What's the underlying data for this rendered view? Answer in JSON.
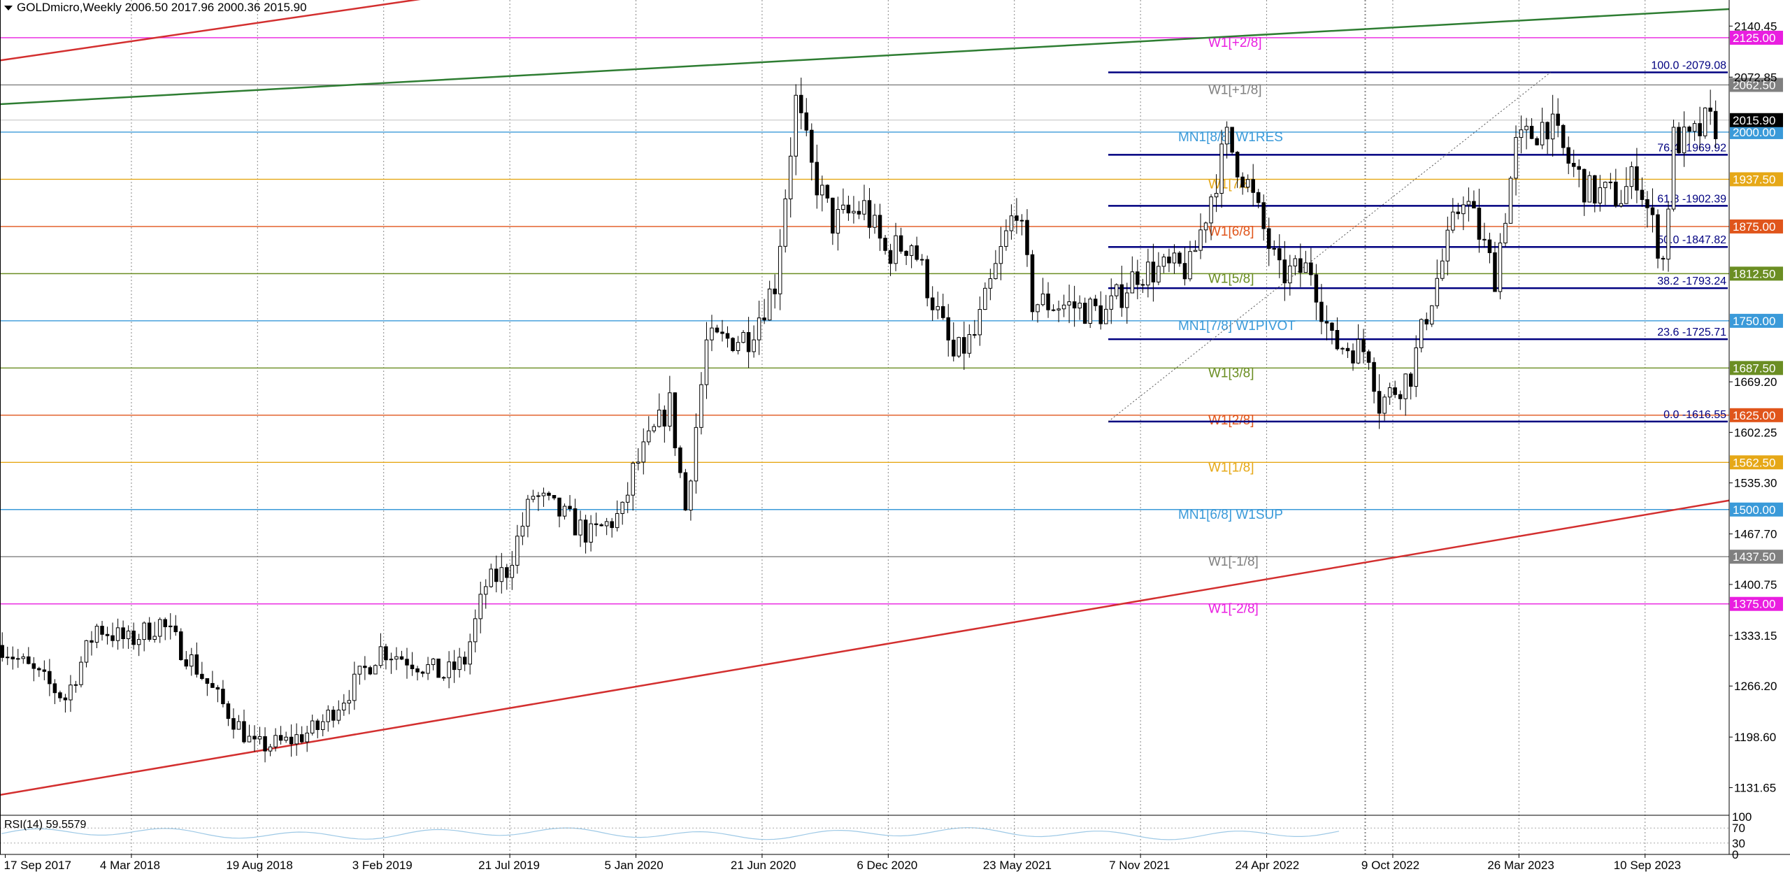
{
  "header": {
    "symbol_line": "GOLDmicro,Weekly  2006.50 2017.96 2000.36 2015.90"
  },
  "colors": {
    "background": "#ffffff",
    "candle": "#000000",
    "grid": "#888888",
    "fib": "#000080",
    "trend_red": "#d32f2f",
    "trend_green": "#2e7d32"
  },
  "chart_data": {
    "type": "candlestick",
    "title": "GOLDmicro,Weekly",
    "ohlc_last": {
      "open": 2006.5,
      "high": 2017.96,
      "low": 2000.36,
      "close": 2015.9
    },
    "y_range": [
      1095,
      2175
    ],
    "x_range": [
      "2017-09-10",
      "2023-12-31"
    ],
    "x_ticks": [
      "17 Sep 2017",
      "4 Mar 2018",
      "19 Aug 2018",
      "3 Feb 2019",
      "21 Jul 2019",
      "5 Jan 2020",
      "21 Jun 2020",
      "6 Dec 2020",
      "23 May 2021",
      "7 Nov 2021",
      "24 Apr 2022",
      "9 Oct 2022",
      "26 Mar 2023",
      "10 Sep 2023"
    ],
    "y_ticks": [
      "2140.45",
      "2072.85",
      "1669.20",
      "1602.25",
      "1535.30",
      "1467.70",
      "1400.75",
      "1333.15",
      "1266.20",
      "1198.60",
      "1131.65"
    ],
    "current_price": "2015.90",
    "murrey_levels": [
      {
        "price": 2125.0,
        "badge": "2125.00",
        "label": "W1[+2/8]",
        "color": "#e91ee0"
      },
      {
        "price": 2062.5,
        "badge": "2062.50",
        "label": "W1[+1/8]",
        "color": "#808080"
      },
      {
        "price": 2000.0,
        "badge": "2000.00",
        "label": "MN1[8/8] W1RES",
        "color": "#3a9ad9"
      },
      {
        "price": 1937.5,
        "badge": "1937.50",
        "label": "W1[7/8]",
        "color": "#e6a817"
      },
      {
        "price": 1875.0,
        "badge": "1875.00",
        "label": "W1[6/8]",
        "color": "#e0551b"
      },
      {
        "price": 1812.5,
        "badge": "1812.50",
        "label": "W1[5/8]",
        "color": "#6b8e23"
      },
      {
        "price": 1750.0,
        "badge": "1750.00",
        "label": "MN1[7/8] W1PIVOT",
        "color": "#3a9ad9"
      },
      {
        "price": 1687.5,
        "badge": "1687.50",
        "label": "W1[3/8]",
        "color": "#6b8e23"
      },
      {
        "price": 1625.0,
        "badge": "1625.00",
        "label": "W1[2/8]",
        "color": "#e0551b"
      },
      {
        "price": 1562.5,
        "badge": "1562.50",
        "label": "W1[1/8]",
        "color": "#e6a817"
      },
      {
        "price": 1500.0,
        "badge": "1500.00",
        "label": "MN1[6/8] W1SUP",
        "color": "#3a9ad9"
      },
      {
        "price": 1437.5,
        "badge": "1437.50",
        "label": "W1[-1/8]",
        "color": "#808080"
      },
      {
        "price": 1375.0,
        "badge": "1375.00",
        "label": "W1[-2/8]",
        "color": "#e91ee0"
      }
    ],
    "fibonacci": [
      {
        "price": 2079.08,
        "label": "100.0 -2079.08"
      },
      {
        "price": 1969.92,
        "label": "76.4 -1969.92"
      },
      {
        "price": 1902.39,
        "label": "61.8 -1902.39"
      },
      {
        "price": 1847.82,
        "label": "50.0 -1847.82"
      },
      {
        "price": 1793.24,
        "label": "38.2 -1793.24"
      },
      {
        "price": 1725.71,
        "label": "23.6 -1725.71"
      },
      {
        "price": 1616.55,
        "label": "0.0 -1616.55"
      }
    ],
    "price_path": [
      [
        "2017-09-17",
        1320
      ],
      [
        "2017-10-15",
        1295
      ],
      [
        "2017-12-10",
        1250
      ],
      [
        "2018-01-21",
        1345
      ],
      [
        "2018-03-04",
        1325
      ],
      [
        "2018-04-15",
        1350
      ],
      [
        "2018-05-27",
        1300
      ],
      [
        "2018-07-01",
        1250
      ],
      [
        "2018-08-19",
        1185
      ],
      [
        "2018-09-30",
        1192
      ],
      [
        "2018-11-11",
        1210
      ],
      [
        "2018-12-23",
        1260
      ],
      [
        "2019-02-03",
        1315
      ],
      [
        "2019-03-17",
        1300
      ],
      [
        "2019-04-28",
        1280
      ],
      [
        "2019-05-26",
        1300
      ],
      [
        "2019-06-23",
        1400
      ],
      [
        "2019-07-21",
        1420
      ],
      [
        "2019-08-25",
        1520
      ],
      [
        "2019-09-29",
        1495
      ],
      [
        "2019-11-10",
        1465
      ],
      [
        "2019-12-22",
        1495
      ],
      [
        "2020-01-05",
        1550
      ],
      [
        "2020-02-23",
        1640
      ],
      [
        "2020-03-15",
        1500
      ],
      [
        "2020-04-12",
        1720
      ],
      [
        "2020-06-07",
        1730
      ],
      [
        "2020-07-12",
        1800
      ],
      [
        "2020-08-09",
        2040
      ],
      [
        "2020-08-30",
        1950
      ],
      [
        "2020-09-27",
        1880
      ],
      [
        "2020-11-08",
        1900
      ],
      [
        "2020-12-06",
        1840
      ],
      [
        "2021-01-10",
        1855
      ],
      [
        "2021-03-07",
        1700
      ],
      [
        "2021-04-04",
        1730
      ],
      [
        "2021-05-30",
        1905
      ],
      [
        "2021-06-20",
        1775
      ],
      [
        "2021-08-08",
        1770
      ],
      [
        "2021-09-26",
        1760
      ],
      [
        "2021-11-07",
        1815
      ],
      [
        "2022-01-16",
        1820
      ],
      [
        "2022-03-06",
        1990
      ],
      [
        "2022-04-03",
        1930
      ],
      [
        "2022-05-15",
        1810
      ],
      [
        "2022-06-26",
        1820
      ],
      [
        "2022-07-24",
        1720
      ],
      [
        "2022-09-11",
        1710
      ],
      [
        "2022-09-25",
        1640
      ],
      [
        "2022-11-06",
        1680
      ],
      [
        "2022-11-27",
        1760
      ],
      [
        "2023-01-15",
        1920
      ],
      [
        "2023-02-26",
        1810
      ],
      [
        "2023-03-26",
        1980
      ],
      [
        "2023-05-07",
        2015
      ],
      [
        "2023-06-04",
        1960
      ],
      [
        "2023-07-02",
        1920
      ],
      [
        "2023-08-13",
        1915
      ],
      [
        "2023-09-03",
        1945
      ],
      [
        "2023-10-08",
        1830
      ],
      [
        "2023-10-22",
        1990
      ],
      [
        "2023-11-12",
        1985
      ],
      [
        "2023-12-03",
        2010
      ]
    ],
    "trendlines": [
      {
        "color": "#d32f2f",
        "from": [
          "2017-09-10",
          1122
        ],
        "to": [
          "2023-12-31",
          1512
        ]
      },
      {
        "color": "#d32f2f",
        "from": [
          "2017-09-10",
          2095
        ],
        "to": [
          "2020-06-07",
          2240
        ]
      },
      {
        "color": "#2e7d32",
        "from": [
          "2017-09-10",
          2037
        ],
        "to": [
          "2023-12-31",
          2163
        ]
      }
    ],
    "grid": true,
    "rsi": {
      "label": "RSI(14) 59.5579",
      "value": 59.5579,
      "ticks": [
        "100",
        "70",
        "30",
        "0"
      ]
    }
  }
}
